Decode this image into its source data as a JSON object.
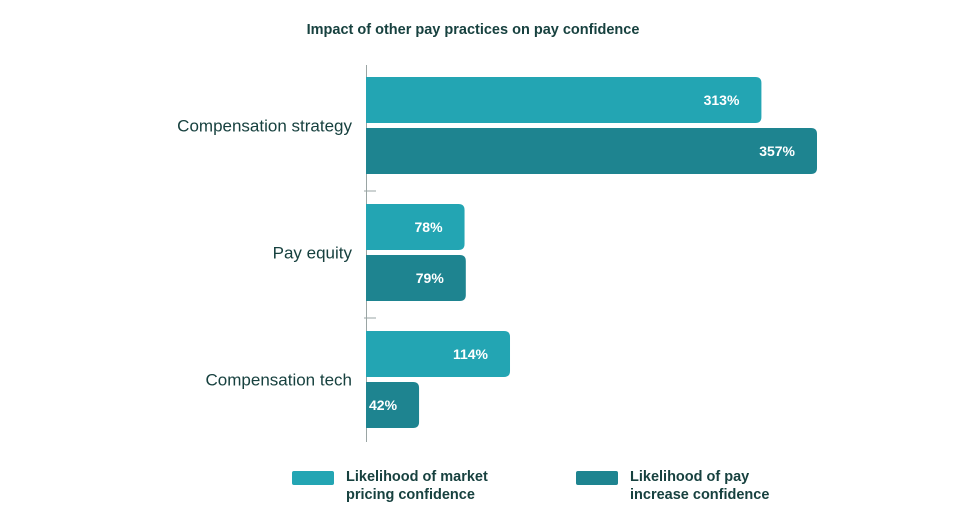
{
  "chart_data": {
    "type": "bar",
    "orientation": "horizontal",
    "title": "Impact of other pay practices on pay confidence",
    "categories": [
      "Compensation strategy",
      "Pay equity",
      "Compensation tech"
    ],
    "series": [
      {
        "name": "Likelihood of market pricing confidence",
        "values": [
          313,
          78,
          114
        ],
        "labels": [
          "313%",
          "78%",
          "114%"
        ],
        "color": "#23a5b3"
      },
      {
        "name": "Likelihood of pay increase confidence",
        "values": [
          357,
          79,
          42
        ],
        "labels": [
          "357%",
          "79%",
          "42%"
        ],
        "color": "#1e8490"
      }
    ],
    "xlim": [
      0,
      400
    ],
    "grid": false,
    "legend_position": "bottom"
  },
  "legend": {
    "items": [
      {
        "lines": [
          "Likelihood of market",
          "pricing confidence"
        ],
        "color": "#23a5b3"
      },
      {
        "lines": [
          "Likelihood of pay",
          "increase confidence"
        ],
        "color": "#1e8490"
      }
    ]
  }
}
